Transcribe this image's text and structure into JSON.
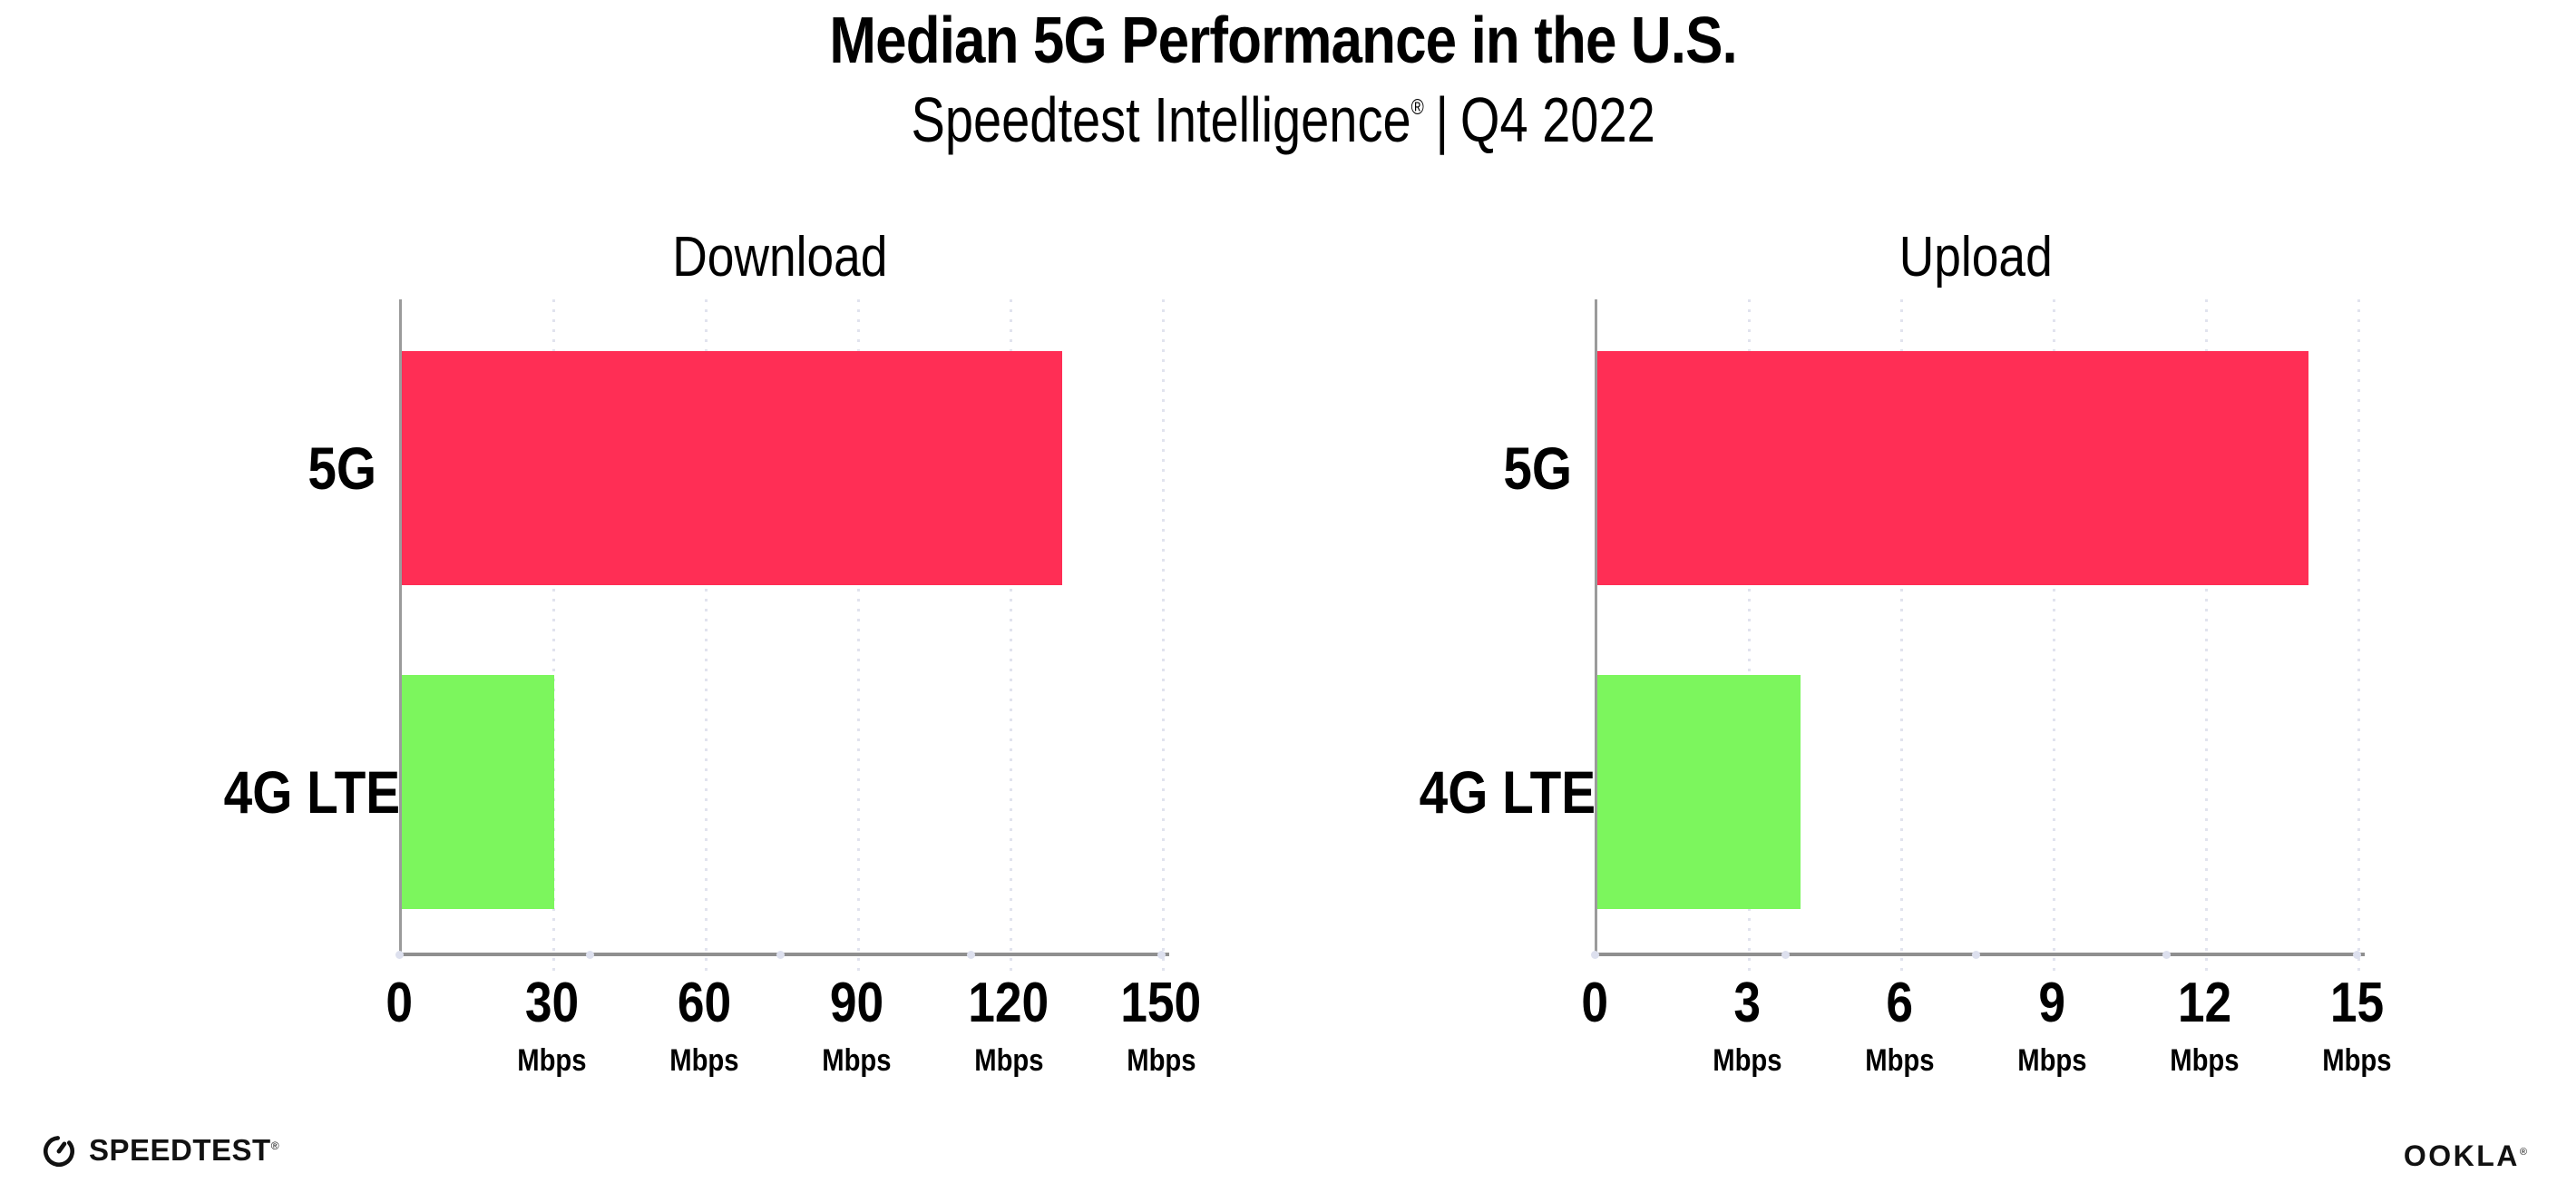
{
  "header": {
    "title": "Median 5G Performance in the U.S.",
    "subtitle_brand": "Speedtest Intelligence",
    "subtitle_reg": "®",
    "subtitle_sep": "|",
    "subtitle_period": "Q4 2022"
  },
  "colors": {
    "bar_5g": "#ff2e55",
    "bar_4g_lte": "#7cf65d",
    "axis_spine": "#9b9b9b",
    "axis_baseline": "#8f8f8f",
    "gridline": "#e1e3ee",
    "axis_dot": "#dde0ee",
    "text": "#000000"
  },
  "chart_data": [
    {
      "type": "bar",
      "orientation": "horizontal",
      "title": "Download",
      "categories": [
        "5G",
        "4G LTE"
      ],
      "values": [
        130,
        30
      ],
      "unit": "Mbps",
      "xlim": [
        0,
        150
      ],
      "xticks": [
        0,
        30,
        60,
        90,
        120,
        150
      ],
      "tick_unit": "Mbps",
      "grid": "dotted-vertical",
      "legend": "none",
      "bar_colors": [
        "#ff2e55",
        "#7cf65d"
      ]
    },
    {
      "type": "bar",
      "orientation": "horizontal",
      "title": "Upload",
      "categories": [
        "5G",
        "4G LTE"
      ],
      "values": [
        14,
        4
      ],
      "unit": "Mbps",
      "xlim": [
        0,
        15
      ],
      "xticks": [
        0,
        3,
        6,
        9,
        12,
        15
      ],
      "tick_unit": "Mbps",
      "grid": "dotted-vertical",
      "legend": "none",
      "bar_colors": [
        "#ff2e55",
        "#7cf65d"
      ]
    }
  ],
  "footer": {
    "speedtest_label": "SPEEDTEST",
    "speedtest_mark": "®",
    "ookla_label": "OOKLA",
    "ookla_mark": "®"
  }
}
